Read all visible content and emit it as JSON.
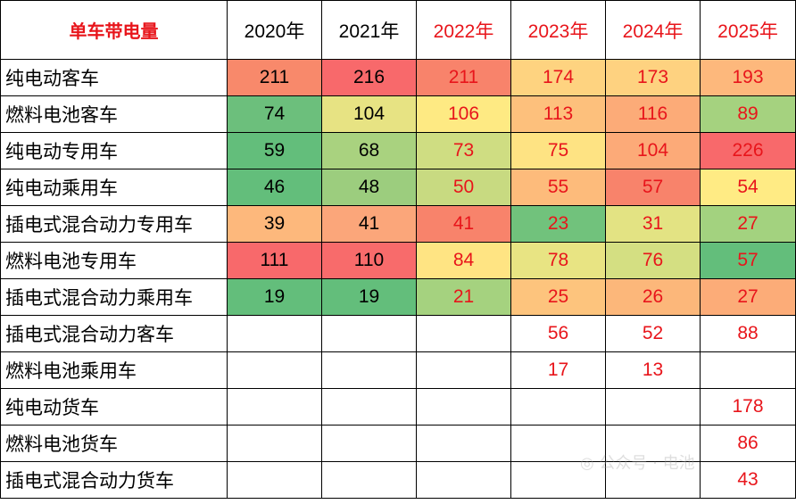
{
  "chart_data": {
    "type": "table",
    "title": "单车带电量",
    "columns": [
      "2020年",
      "2021年",
      "2022年",
      "2023年",
      "2024年",
      "2025年"
    ],
    "red_columns": [
      "2022年",
      "2023年",
      "2024年",
      "2025年"
    ],
    "rows": [
      {
        "label": "纯电动客车",
        "values": [
          211,
          216,
          211,
          174,
          173,
          193
        ],
        "colors": [
          "#f8896b",
          "#f8696b",
          "#f8836b",
          "#fed380",
          "#fed280",
          "#fdb87c"
        ]
      },
      {
        "label": "燃料电池客车",
        "values": [
          74,
          104,
          106,
          113,
          116,
          89
        ],
        "colors": [
          "#6cbf7c",
          "#e7e383",
          "#feea83",
          "#fdc07c",
          "#fcab78",
          "#a5d27f"
        ]
      },
      {
        "label": "纯电动专用车",
        "values": [
          59,
          68,
          73,
          75,
          104,
          226
        ],
        "colors": [
          "#63be7b",
          "#a9d27f",
          "#cfdd82",
          "#fee383",
          "#fcaa78",
          "#f8696b"
        ]
      },
      {
        "label": "纯电动乘用车",
        "values": [
          46,
          48,
          50,
          55,
          57,
          54
        ],
        "colors": [
          "#63be7b",
          "#9ccd7e",
          "#c8da81",
          "#fdbb7b",
          "#f8836b",
          "#ffeb84"
        ]
      },
      {
        "label": "插电式混合动力专用车",
        "values": [
          39,
          41,
          41,
          23,
          31,
          27
        ],
        "colors": [
          "#fdb87c",
          "#fba67a",
          "#f8836b",
          "#71c27c",
          "#e3e383",
          "#a3d27f"
        ]
      },
      {
        "label": "燃料电池专用车",
        "values": [
          111,
          110,
          84,
          78,
          76,
          57
        ],
        "colors": [
          "#f8696b",
          "#f86b6b",
          "#ffe483",
          "#e8e483",
          "#d4df82",
          "#63be7b"
        ]
      },
      {
        "label": "插电式混合动力乘用车",
        "values": [
          19,
          19,
          21,
          25,
          26,
          27
        ],
        "colors": [
          "#63be7b",
          "#63be7b",
          "#a5d27f",
          "#fdc47d",
          "#fcb77a",
          "#fcac78"
        ]
      },
      {
        "label": "插电式混合动力客车",
        "values": [
          null,
          null,
          null,
          56,
          52,
          88
        ],
        "colors": [
          null,
          null,
          null,
          null,
          null,
          null
        ]
      },
      {
        "label": "燃料电池乘用车",
        "values": [
          null,
          null,
          null,
          17,
          13,
          null
        ],
        "colors": [
          null,
          null,
          null,
          null,
          null,
          null
        ]
      },
      {
        "label": "纯电动货车",
        "values": [
          null,
          null,
          null,
          null,
          null,
          178
        ],
        "colors": [
          null,
          null,
          null,
          null,
          null,
          null
        ]
      },
      {
        "label": "燃料电池货车",
        "values": [
          null,
          null,
          null,
          null,
          null,
          86
        ],
        "colors": [
          null,
          null,
          null,
          null,
          null,
          null
        ]
      },
      {
        "label": "插电式混合动力货车",
        "values": [
          null,
          null,
          null,
          null,
          null,
          43
        ],
        "colors": [
          null,
          null,
          null,
          null,
          null,
          null
        ]
      }
    ]
  }
}
